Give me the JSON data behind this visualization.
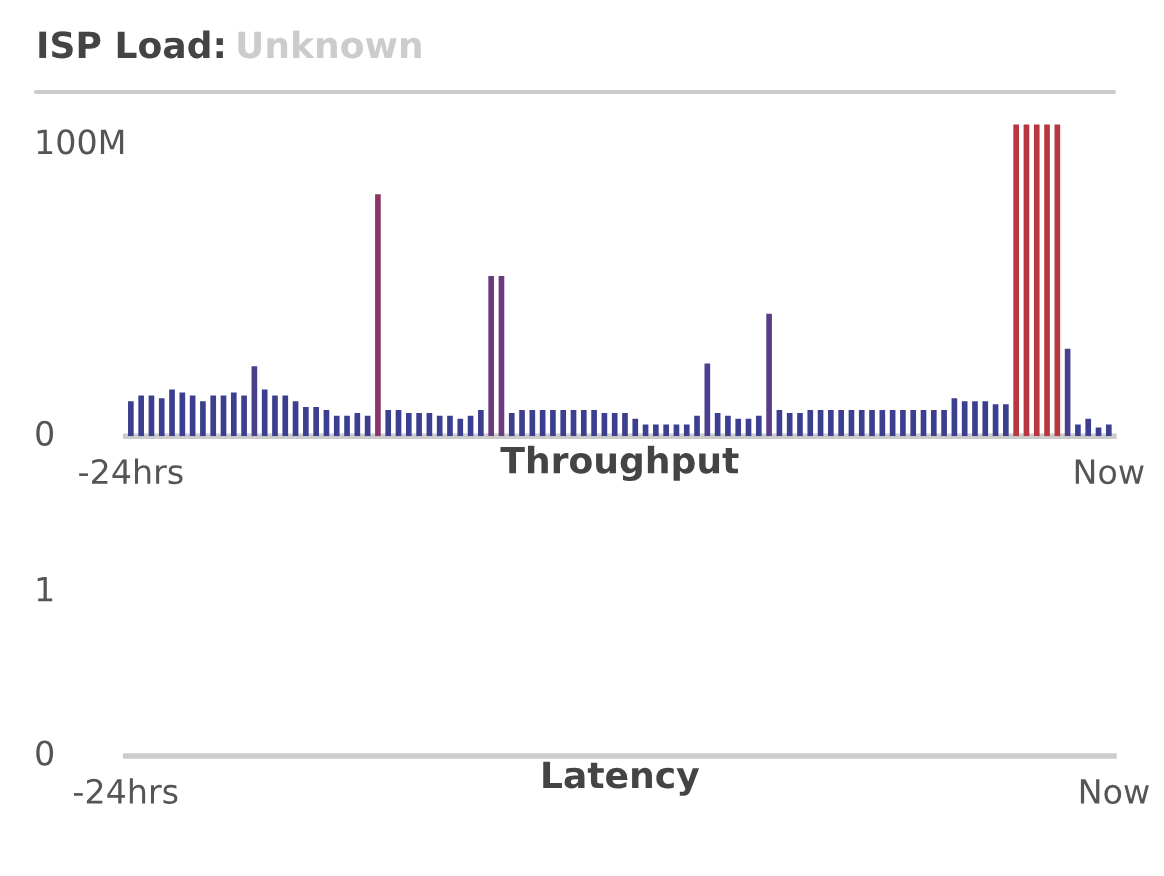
{
  "chart_data": [
    {
      "type": "bar",
      "title": "ISP Load:",
      "subtitle": "Unknown",
      "xlabel": "Throughput",
      "categories": [
        "-24hrs",
        null,
        null,
        null,
        null,
        null,
        null,
        null,
        null,
        null,
        null,
        null,
        null,
        null,
        null,
        null,
        null,
        null,
        null,
        null,
        null,
        null,
        null,
        null,
        null,
        null,
        null,
        null,
        null,
        null,
        null,
        null,
        null,
        null,
        null,
        null,
        null,
        null,
        null,
        null,
        null,
        null,
        null,
        null,
        null,
        null,
        null,
        null,
        null,
        null,
        null,
        null,
        null,
        null,
        null,
        null,
        null,
        null,
        null,
        null,
        null,
        null,
        null,
        null,
        null,
        null,
        null,
        null,
        null,
        null,
        null,
        null,
        null,
        null,
        null,
        null,
        null,
        null,
        null,
        null,
        null,
        null,
        null,
        null,
        null,
        null,
        null,
        null,
        null,
        null,
        null,
        null,
        null,
        null,
        null,
        "Now"
      ],
      "values": [
        12,
        14,
        14,
        13,
        16,
        15,
        14,
        12,
        14,
        14,
        15,
        14,
        24,
        16,
        14,
        14,
        12,
        10,
        10,
        9,
        7,
        7,
        8,
        7,
        83,
        9,
        9,
        8,
        8,
        8,
        7,
        7,
        6,
        7,
        9,
        55,
        55,
        8,
        9,
        9,
        9,
        9,
        9,
        9,
        9,
        9,
        8,
        8,
        8,
        6,
        4,
        4,
        4,
        4,
        4,
        7,
        25,
        8,
        7,
        6,
        6,
        7,
        42,
        9,
        8,
        8,
        9,
        9,
        9,
        9,
        9,
        9,
        9,
        9,
        9,
        9,
        9,
        9,
        9,
        9,
        13,
        12,
        12,
        12,
        11,
        11,
        107,
        107,
        107,
        107,
        107,
        30,
        4,
        6,
        3,
        4
      ],
      "colors": [
        "#3c3f8f",
        "#3c3f8f",
        "#3c3f8f",
        "#3c3f8f",
        "#3c3f8f",
        "#3c3f8f",
        "#3c3f8f",
        "#3c3f8f",
        "#3c3f8f",
        "#3c3f8f",
        "#3c3f8f",
        "#3c3f8f",
        "#4a3f8c",
        "#3c3f8f",
        "#3c3f8f",
        "#3c3f8f",
        "#3c3f8f",
        "#3c3f8f",
        "#3c3f8f",
        "#3c3f8f",
        "#3c3f8f",
        "#3c3f8f",
        "#3c3f8f",
        "#3c3f8f",
        "#8c3466",
        "#3c3f8f",
        "#3c3f8f",
        "#3c3f8f",
        "#3c3f8f",
        "#3c3f8f",
        "#3c3f8f",
        "#3c3f8f",
        "#3c3f8f",
        "#3c3f8f",
        "#3c3f8f",
        "#6b3b80",
        "#6b3b80",
        "#3c3f8f",
        "#3c3f8f",
        "#3c3f8f",
        "#3c3f8f",
        "#3c3f8f",
        "#3c3f8f",
        "#3c3f8f",
        "#3c3f8f",
        "#3c3f8f",
        "#3c3f8f",
        "#3c3f8f",
        "#3c3f8f",
        "#3c3f8f",
        "#3c3f8f",
        "#3c3f8f",
        "#3c3f8f",
        "#3c3f8f",
        "#3c3f8f",
        "#3c3f8f",
        "#4a3f8c",
        "#3c3f8f",
        "#3c3f8f",
        "#3c3f8f",
        "#3c3f8f",
        "#3c3f8f",
        "#5a3d88",
        "#3c3f8f",
        "#3c3f8f",
        "#3c3f8f",
        "#3c3f8f",
        "#3c3f8f",
        "#3c3f8f",
        "#3c3f8f",
        "#3c3f8f",
        "#3c3f8f",
        "#3c3f8f",
        "#3c3f8f",
        "#3c3f8f",
        "#3c3f8f",
        "#3c3f8f",
        "#3c3f8f",
        "#3c3f8f",
        "#3c3f8f",
        "#3c3f8f",
        "#3c3f8f",
        "#3c3f8f",
        "#3c3f8f",
        "#3c3f8f",
        "#3c3f8f",
        "#b8363f",
        "#b8363f",
        "#b8363f",
        "#b8363f",
        "#b8363f",
        "#4a3f8c",
        "#3c3f8f",
        "#3c3f8f",
        "#3c3f8f",
        "#3c3f8f"
      ],
      "ylim": [
        0,
        110
      ],
      "yticks": [
        0,
        {
          "value": 100,
          "label": "100M"
        }
      ],
      "grid": false,
      "legend": false
    },
    {
      "type": "line",
      "xlabel": "Latency",
      "categories": [
        "-24hrs",
        "Now"
      ],
      "values": [
        null,
        null
      ],
      "ylim": [
        0,
        1
      ],
      "yticks": [
        0,
        1
      ],
      "grid": false,
      "legend": false
    }
  ]
}
